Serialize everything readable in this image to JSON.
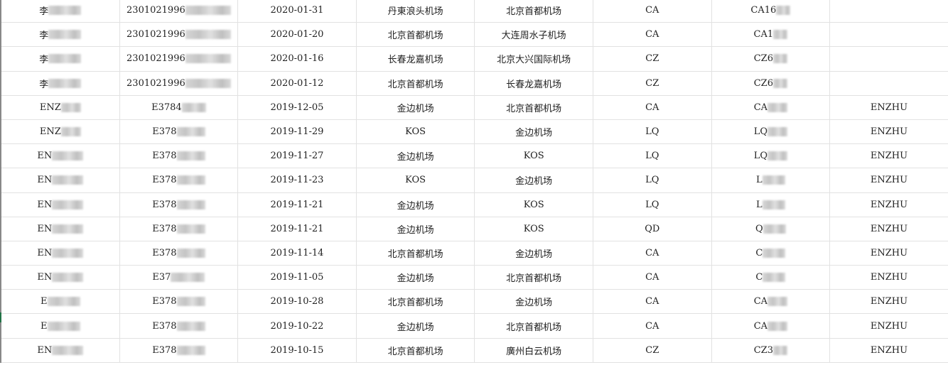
{
  "rows": [
    {
      "name": "李",
      "id": "2301021996",
      "date": "2020-01-31",
      "from": "丹東浪头机场",
      "to": "北京首都机场",
      "airline": "CA",
      "flight": "CA16",
      "passenger": ""
    },
    {
      "name": "李",
      "id": "2301021996",
      "date": "2020-01-20",
      "from": "北京首都机场",
      "to": "大连周水子机场",
      "airline": "CA",
      "flight": "CA1",
      "passenger": ""
    },
    {
      "name": "李",
      "id": "2301021996",
      "date": "2020-01-16",
      "from": "长春龙嘉机场",
      "to": "北京大兴国际机场",
      "airline": "CZ",
      "flight": "CZ6",
      "passenger": ""
    },
    {
      "name": "李",
      "id": "2301021996",
      "date": "2020-01-12",
      "from": "北京首都机场",
      "to": "长春龙嘉机场",
      "airline": "CZ",
      "flight": "CZ6",
      "passenger": ""
    },
    {
      "name": "ENZ",
      "id": "E3784",
      "date": "2019-12-05",
      "from": "金边机场",
      "to": "北京首都机场",
      "airline": "CA",
      "flight": "CA",
      "passenger": "ENZHU"
    },
    {
      "name": "ENZ",
      "id": "E378",
      "date": "2019-11-29",
      "from": "KOS",
      "to": "金边机场",
      "airline": "LQ",
      "flight": "LQ",
      "passenger": "ENZHU"
    },
    {
      "name": "EN",
      "id": "E378",
      "date": "2019-11-27",
      "from": "金边机场",
      "to": "KOS",
      "airline": "LQ",
      "flight": "LQ",
      "passenger": "ENZHU"
    },
    {
      "name": "EN",
      "id": "E378",
      "date": "2019-11-23",
      "from": "KOS",
      "to": "金边机场",
      "airline": "LQ",
      "flight": "L",
      "passenger": "ENZHU"
    },
    {
      "name": "EN",
      "id": "E378",
      "date": "2019-11-21",
      "from": "金边机场",
      "to": "KOS",
      "airline": "LQ",
      "flight": "L",
      "passenger": "ENZHU"
    },
    {
      "name": "EN",
      "id": "E378",
      "date": "2019-11-21",
      "from": "金边机场",
      "to": "KOS",
      "airline": "QD",
      "flight": "Q",
      "passenger": "ENZHU"
    },
    {
      "name": "EN",
      "id": "E378",
      "date": "2019-11-14",
      "from": "北京首都机场",
      "to": "金边机场",
      "airline": "CA",
      "flight": "C",
      "passenger": "ENZHU"
    },
    {
      "name": "EN",
      "id": "E37",
      "date": "2019-11-05",
      "from": "金边机场",
      "to": "北京首都机场",
      "airline": "CA",
      "flight": "C",
      "passenger": "ENZHU"
    },
    {
      "name": "E",
      "id": "E378",
      "date": "2019-10-28",
      "from": "北京首都机场",
      "to": "金边机场",
      "airline": "CA",
      "flight": "CA",
      "passenger": "ENZHU"
    },
    {
      "name": "E",
      "id": "E378",
      "date": "2019-10-22",
      "from": "金边机场",
      "to": "北京首都机场",
      "airline": "CA",
      "flight": "CA",
      "passenger": "ENZHU"
    },
    {
      "name": "EN",
      "id": "E378",
      "date": "2019-10-15",
      "from": "北京首都机场",
      "to": "廣州白云机场",
      "airline": "CZ",
      "flight": "CZ3",
      "passenger": "ENZHU"
    }
  ]
}
